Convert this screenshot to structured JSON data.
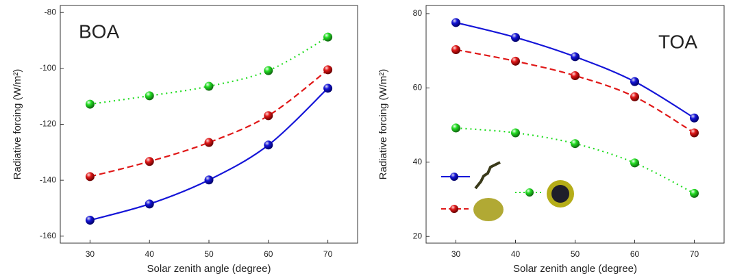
{
  "chart_data": [
    {
      "type": "line",
      "annotation": "BOA",
      "xlabel": "Solar zenith angle (degree)",
      "ylabel": "Radiative forcing (W/m²)",
      "x": [
        30,
        40,
        50,
        60,
        70
      ],
      "xlim": [
        25,
        75
      ],
      "xticks": [
        30,
        40,
        50,
        60,
        70
      ],
      "ylim": [
        -162.5,
        -77.5
      ],
      "yticks": [
        -160,
        -140,
        -120,
        -100,
        -80
      ],
      "series": [
        {
          "color": "#1515d8",
          "dash": "solid",
          "values": [
            -154.3,
            -148.5,
            -139.9,
            -127.4,
            -107.1
          ]
        },
        {
          "color": "#e01818",
          "dash": "dashed",
          "values": [
            -138.7,
            -133.3,
            -126.5,
            -116.9,
            -100.5
          ]
        },
        {
          "color": "#22dd22",
          "dash": "dotted",
          "values": [
            -112.8,
            -109.8,
            -106.4,
            -100.8,
            -88.8
          ]
        }
      ]
    },
    {
      "type": "line",
      "annotation": "TOA",
      "xlabel": "Solar zenith angle (degree)",
      "ylabel": "Radiative forcing (W/m²)",
      "x": [
        30,
        40,
        50,
        60,
        70
      ],
      "xlim": [
        25,
        75
      ],
      "xticks": [
        30,
        40,
        50,
        60,
        70
      ],
      "ylim": [
        18.2,
        82.2
      ],
      "yticks": [
        20,
        40,
        60,
        80
      ],
      "series": [
        {
          "color": "#1515d8",
          "dash": "solid",
          "values": [
            77.6,
            73.6,
            68.4,
            61.7,
            51.9
          ]
        },
        {
          "color": "#e01818",
          "dash": "dashed",
          "values": [
            70.3,
            67.2,
            63.3,
            57.6,
            47.9
          ]
        },
        {
          "color": "#22dd22",
          "dash": "dotted",
          "values": [
            49.2,
            47.9,
            45.0,
            39.8,
            31.6
          ]
        }
      ]
    }
  ]
}
